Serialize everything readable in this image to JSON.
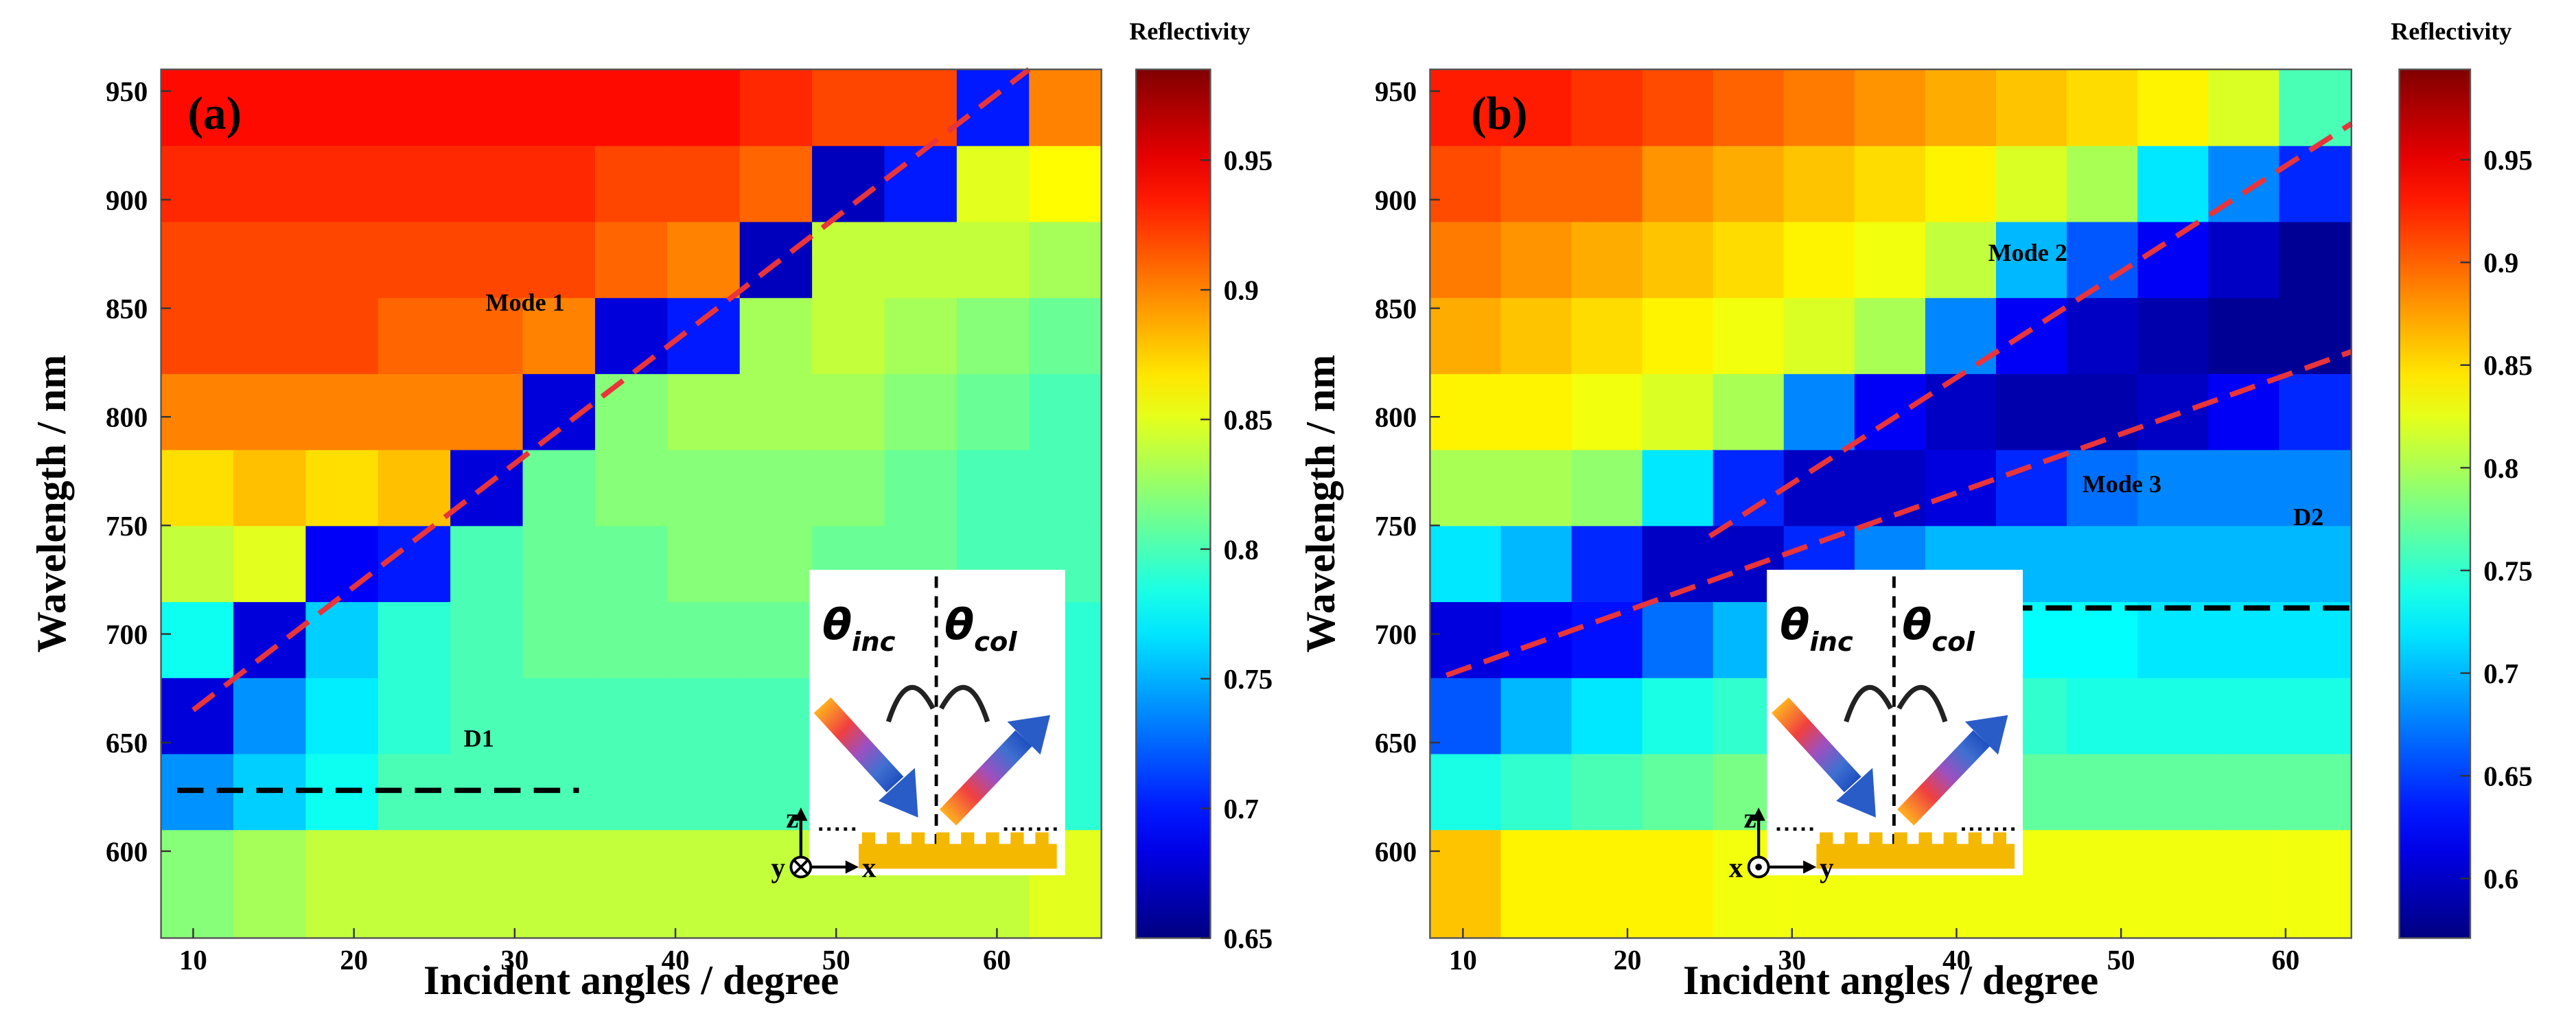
{
  "chart_data": [
    {
      "type": "heatmap",
      "panel_label": "(a)",
      "x_label": "Incident angles / degree",
      "y_label": "Wavelength / nm",
      "colorbar_label": "Reflectivity",
      "colormap": "jet",
      "xlim": [
        8,
        66.5
      ],
      "ylim": [
        560,
        960
      ],
      "xticks": [
        10,
        20,
        30,
        40,
        50,
        60
      ],
      "yticks": [
        600,
        650,
        700,
        750,
        800,
        850,
        900,
        950
      ],
      "zlim": [
        0.65,
        0.985
      ],
      "zticks": [
        0.65,
        0.7,
        0.75,
        0.8,
        0.85,
        0.9,
        0.95
      ],
      "x_edges": [
        8,
        12.5,
        17,
        21.5,
        26,
        30.5,
        35,
        39.5,
        44,
        48.5,
        53,
        57.5,
        62,
        66.5
      ],
      "y_edges": [
        560,
        610,
        645,
        680,
        715,
        750,
        785,
        820,
        855,
        890,
        925,
        960
      ],
      "z": [
        [
          0.82,
          0.74,
          0.68,
          0.78,
          0.84,
          0.87,
          0.9,
          0.92,
          0.92,
          0.93,
          0.94
        ],
        [
          0.83,
          0.76,
          0.74,
          0.68,
          0.85,
          0.88,
          0.9,
          0.92,
          0.92,
          0.93,
          0.94
        ],
        [
          0.84,
          0.78,
          0.77,
          0.76,
          0.69,
          0.87,
          0.9,
          0.92,
          0.92,
          0.93,
          0.94
        ],
        [
          0.84,
          0.8,
          0.79,
          0.79,
          0.7,
          0.88,
          0.9,
          0.91,
          0.92,
          0.93,
          0.94
        ],
        [
          0.84,
          0.8,
          0.8,
          0.8,
          0.8,
          0.68,
          0.9,
          0.91,
          0.92,
          0.93,
          0.94
        ],
        [
          0.84,
          0.8,
          0.8,
          0.81,
          0.81,
          0.81,
          0.68,
          0.9,
          0.92,
          0.93,
          0.94
        ],
        [
          0.84,
          0.8,
          0.8,
          0.81,
          0.81,
          0.82,
          0.82,
          0.68,
          0.91,
          0.92,
          0.94
        ],
        [
          0.84,
          0.8,
          0.8,
          0.81,
          0.82,
          0.82,
          0.83,
          0.7,
          0.9,
          0.92,
          0.94
        ],
        [
          0.84,
          0.8,
          0.8,
          0.81,
          0.82,
          0.82,
          0.83,
          0.83,
          0.67,
          0.91,
          0.93
        ],
        [
          0.84,
          0.79,
          0.8,
          0.8,
          0.81,
          0.82,
          0.83,
          0.84,
          0.84,
          0.67,
          0.92
        ],
        [
          0.84,
          0.79,
          0.79,
          0.8,
          0.81,
          0.81,
          0.82,
          0.83,
          0.84,
          0.7,
          0.92
        ],
        [
          0.84,
          0.79,
          0.79,
          0.79,
          0.8,
          0.8,
          0.81,
          0.82,
          0.84,
          0.85,
          0.7
        ],
        [
          0.85,
          0.79,
          0.79,
          0.79,
          0.8,
          0.8,
          0.8,
          0.81,
          0.83,
          0.86,
          0.9
        ]
      ],
      "lines": [
        {
          "name": "Mode 1",
          "color": "#e8343a",
          "x": [
            10,
            62
          ],
          "y": [
            665,
            960
          ]
        },
        {
          "name": "D1",
          "color": "#000000",
          "x": [
            9,
            34
          ],
          "y": [
            628,
            628
          ]
        }
      ],
      "inset": {
        "theta_left": "θ",
        "sub_left": "inc",
        "theta_right": "θ",
        "sub_right": "col",
        "axis_up": "z",
        "axis_in": "y",
        "axis_right": "x",
        "axis_in_symbol": "cross"
      }
    },
    {
      "type": "heatmap",
      "panel_label": "(b)",
      "x_label": "Incident angles / degree",
      "y_label": "Wavelength / nm",
      "colorbar_label": "Reflectivity",
      "colormap": "jet",
      "xlim": [
        8,
        64
      ],
      "ylim": [
        560,
        960
      ],
      "xticks": [
        10,
        20,
        30,
        40,
        50,
        60
      ],
      "yticks": [
        600,
        650,
        700,
        750,
        800,
        850,
        900,
        950
      ],
      "zlim": [
        0.571,
        0.994
      ],
      "zticks": [
        0.6,
        0.65,
        0.7,
        0.75,
        0.8,
        0.85,
        0.9,
        0.95
      ],
      "x_edges": [
        8,
        12.3,
        16.6,
        20.9,
        25.2,
        29.5,
        33.8,
        38.1,
        42.4,
        46.7,
        51,
        55.3,
        59.6,
        64
      ],
      "y_edges": [
        560,
        610,
        645,
        680,
        715,
        750,
        785,
        820,
        855,
        890,
        925,
        960
      ],
      "z": [
        [
          0.86,
          0.74,
          0.66,
          0.61,
          0.72,
          0.8,
          0.84,
          0.87,
          0.89,
          0.91,
          0.93
        ],
        [
          0.84,
          0.75,
          0.7,
          0.62,
          0.7,
          0.8,
          0.84,
          0.86,
          0.88,
          0.9,
          0.93
        ],
        [
          0.84,
          0.76,
          0.72,
          0.63,
          0.64,
          0.79,
          0.83,
          0.85,
          0.87,
          0.9,
          0.92
        ],
        [
          0.84,
          0.77,
          0.74,
          0.67,
          0.6,
          0.72,
          0.82,
          0.84,
          0.86,
          0.88,
          0.91
        ],
        [
          0.83,
          0.78,
          0.75,
          0.7,
          0.6,
          0.64,
          0.8,
          0.83,
          0.85,
          0.87,
          0.9
        ],
        [
          0.83,
          0.78,
          0.76,
          0.72,
          0.64,
          0.6,
          0.68,
          0.82,
          0.84,
          0.86,
          0.89
        ],
        [
          0.83,
          0.78,
          0.76,
          0.73,
          0.68,
          0.6,
          0.62,
          0.8,
          0.83,
          0.85,
          0.88
        ],
        [
          0.83,
          0.78,
          0.76,
          0.74,
          0.7,
          0.61,
          0.6,
          0.68,
          0.81,
          0.84,
          0.87
        ],
        [
          0.83,
          0.77,
          0.75,
          0.73,
          0.7,
          0.64,
          0.59,
          0.62,
          0.7,
          0.82,
          0.86
        ],
        [
          0.83,
          0.77,
          0.74,
          0.73,
          0.7,
          0.67,
          0.59,
          0.6,
          0.66,
          0.8,
          0.85
        ],
        [
          0.83,
          0.77,
          0.74,
          0.72,
          0.7,
          0.68,
          0.6,
          0.59,
          0.62,
          0.72,
          0.84
        ],
        [
          0.83,
          0.77,
          0.74,
          0.72,
          0.7,
          0.68,
          0.62,
          0.58,
          0.6,
          0.68,
          0.82
        ],
        [
          0.83,
          0.77,
          0.74,
          0.72,
          0.7,
          0.68,
          0.64,
          0.58,
          0.58,
          0.64,
          0.76
        ]
      ],
      "lines": [
        {
          "name": "Mode 2",
          "color": "#e8343a",
          "x": [
            25,
            64
          ],
          "y": [
            745,
            935
          ]
        },
        {
          "name": "Mode 3",
          "color": "#e8343a",
          "x": [
            9,
            64
          ],
          "y": [
            681,
            830
          ]
        },
        {
          "name": "D2",
          "color": "#000000",
          "x": [
            43,
            64
          ],
          "y": [
            712,
            712
          ]
        }
      ],
      "inset": {
        "theta_left": "θ",
        "sub_left": "inc",
        "theta_right": "θ",
        "sub_right": "col",
        "axis_up": "z",
        "axis_in": "x",
        "axis_right": "y",
        "axis_in_symbol": "dot"
      }
    }
  ]
}
